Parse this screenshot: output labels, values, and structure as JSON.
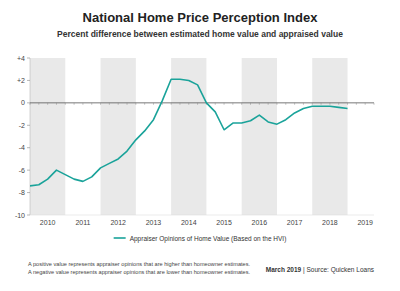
{
  "chart_data": {
    "type": "line",
    "title": "National Home Price Perception Index",
    "subtitle": "Percent difference between estimated home value and appraised value",
    "categories": [
      null,
      null,
      "2010",
      null,
      null,
      null,
      "2011",
      null,
      null,
      null,
      "2012",
      null,
      null,
      null,
      "2013",
      null,
      null,
      null,
      "2014",
      null,
      null,
      null,
      "2015",
      null,
      null,
      null,
      "2016",
      null,
      null,
      null,
      "2017",
      null,
      null,
      null,
      "2018",
      null,
      null,
      null,
      "2019"
    ],
    "series": [
      {
        "name": "Appraiser Opinions of Home Value (Based on the HVI)",
        "color": "#1aa39a",
        "values": [
          -7.4,
          -7.3,
          -6.8,
          -6.0,
          -6.4,
          -6.8,
          -7.0,
          -6.6,
          -5.8,
          -5.4,
          -5.0,
          -4.3,
          -3.3,
          -2.5,
          -1.5,
          0.2,
          2.1,
          2.1,
          2.0,
          1.6,
          0.0,
          -0.8,
          -2.4,
          -1.8,
          -1.8,
          -1.6,
          -1.1,
          -1.7,
          -1.9,
          -1.5,
          -0.9,
          -0.5,
          -0.3,
          -0.3,
          -0.3,
          -0.4,
          -0.5,
          null,
          null
        ]
      }
    ],
    "ylim": [
      -10,
      4
    ],
    "yticks": [
      {
        "value": 4,
        "label": "+4"
      },
      {
        "value": 2,
        "label": "+2"
      },
      0,
      -2,
      -4,
      -6,
      -8,
      -10
    ],
    "grid": false,
    "legend": "bottom",
    "annotations": [
      "A positive value represents appraiser opinions that are higher than homeowner estimates.",
      "A negative value represents appraiser opinions that are lower than homeowner estimates.",
      "March 2019 | Source: Quicken Loans"
    ]
  }
}
